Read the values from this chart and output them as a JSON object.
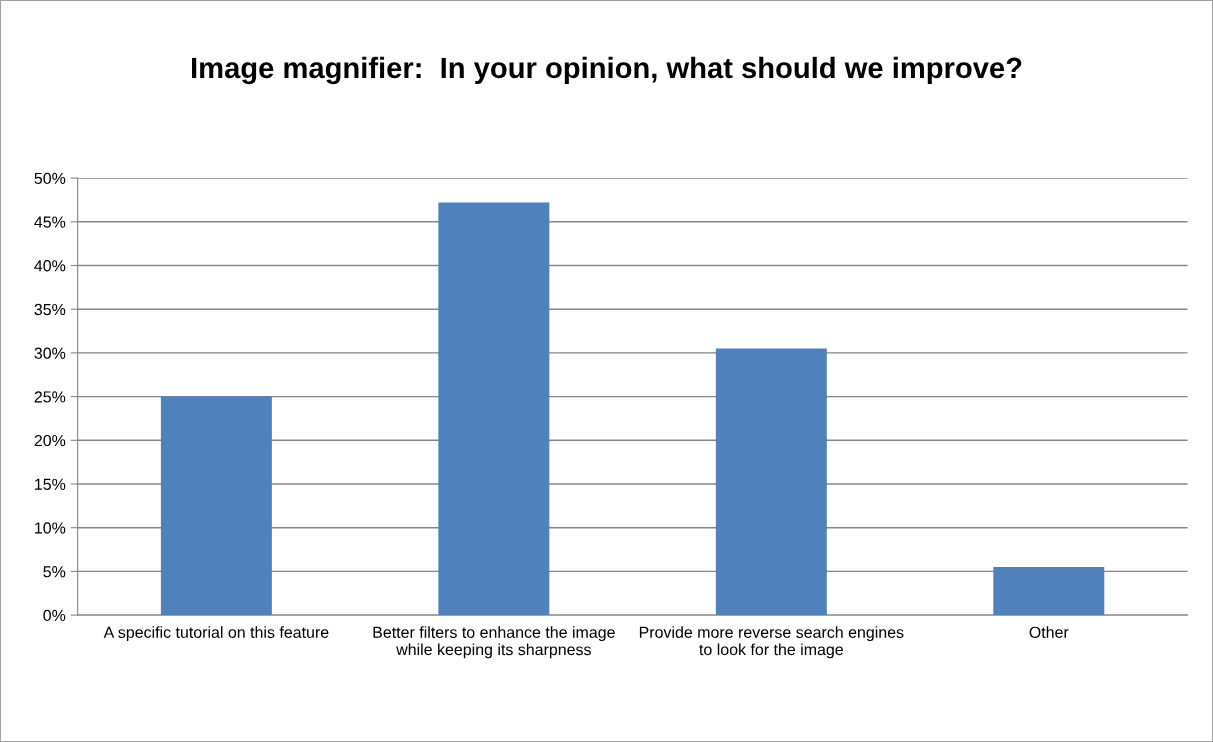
{
  "chart_data": {
    "type": "bar",
    "title": "Image magnifier:  In your opinion, what should we improve?",
    "categories": [
      "A specific tutorial on this feature",
      "Better filters to enhance the image while keeping its sharpness",
      "Provide more reverse search engines to look for the image",
      "Other"
    ],
    "values": [
      25,
      47.2,
      30.5,
      5.5
    ],
    "color": "#4f81bd",
    "ylim": [
      0,
      50
    ],
    "yticks": [
      {
        "value": 0,
        "label": "0%"
      },
      {
        "value": 5,
        "label": "5%"
      },
      {
        "value": 10,
        "label": "10%"
      },
      {
        "value": 15,
        "label": "15%"
      },
      {
        "value": 20,
        "label": "20%"
      },
      {
        "value": 25,
        "label": "25%"
      },
      {
        "value": 30,
        "label": "30%"
      },
      {
        "value": 35,
        "label": "35%"
      },
      {
        "value": 40,
        "label": "40%"
      },
      {
        "value": 45,
        "label": "45%"
      },
      {
        "value": 50,
        "label": "50%"
      }
    ],
    "grid": "y",
    "legend": false
  }
}
